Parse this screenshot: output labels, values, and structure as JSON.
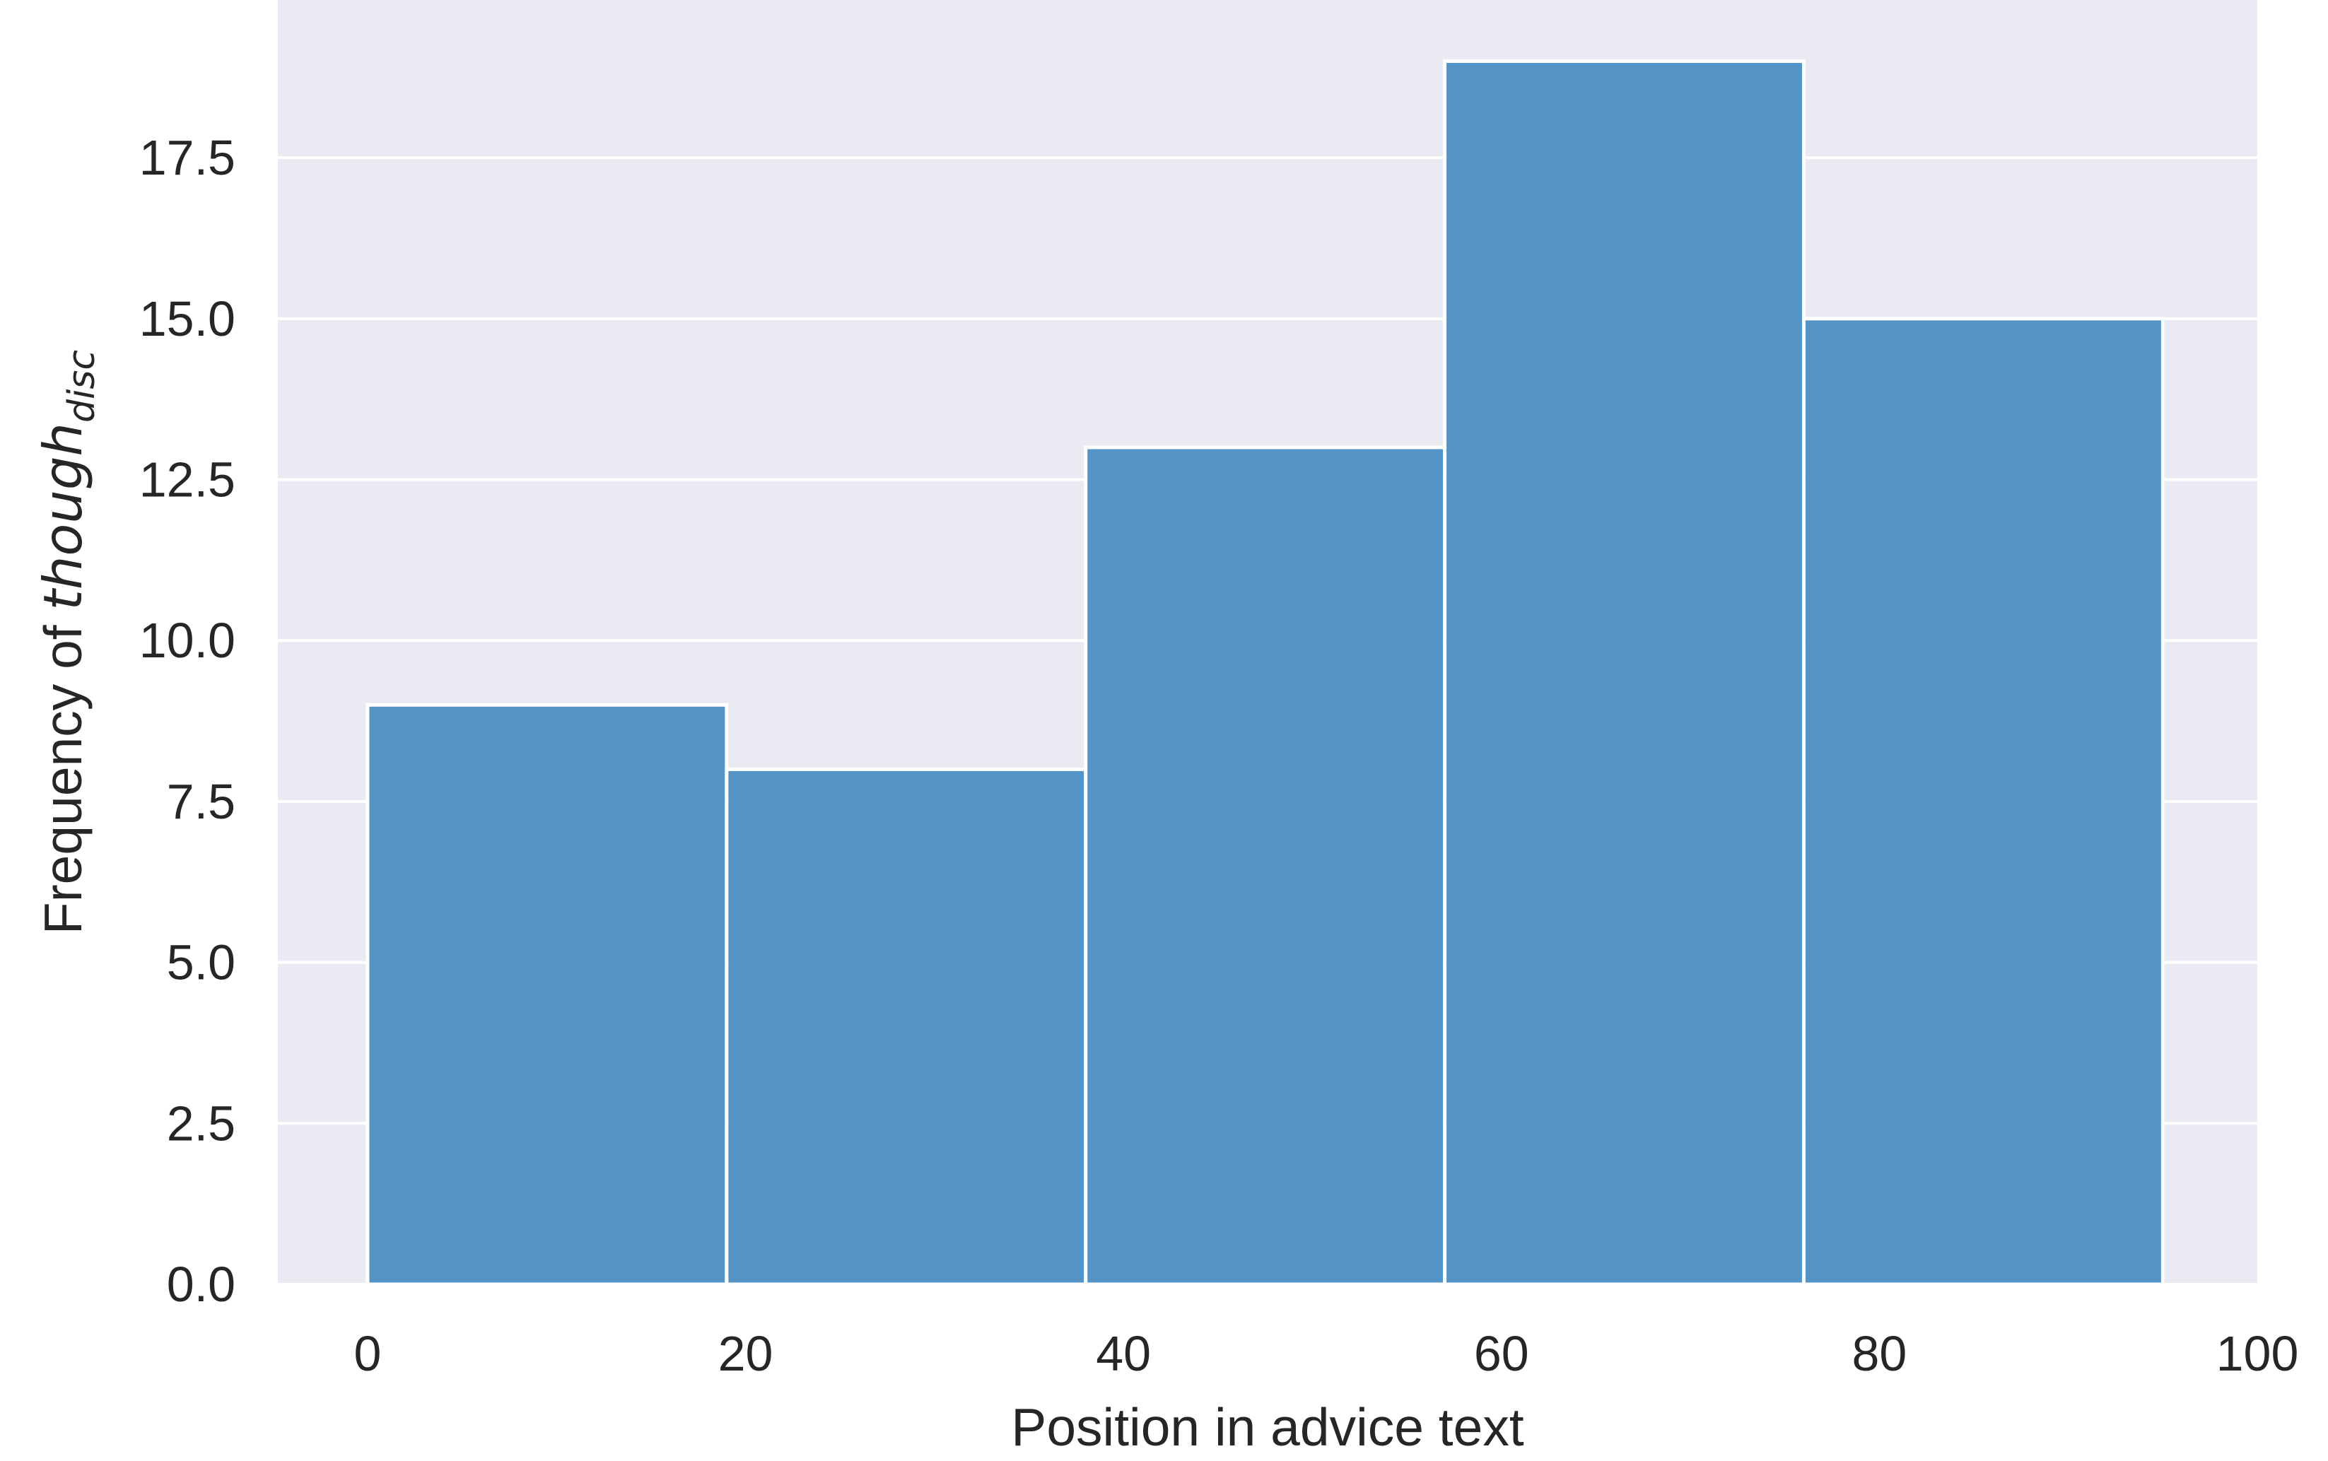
{
  "chart_data": {
    "type": "bar",
    "subtype": "histogram",
    "title": "",
    "xlabel": "Position in advice text",
    "ylabel": {
      "prefix": "Frequency of ",
      "math_main": "though",
      "math_sub": "disc"
    },
    "bin_edges": [
      0,
      19,
      38,
      57,
      76,
      95
    ],
    "values": [
      9,
      8,
      13,
      19,
      15
    ],
    "xlim": [
      -4.75,
      100
    ],
    "ylim": [
      0,
      19.95
    ],
    "x_ticks": [
      0,
      20,
      40,
      60,
      80,
      100
    ],
    "x_tick_labels": [
      "0",
      "20",
      "40",
      "60",
      "80",
      "100"
    ],
    "y_ticks": [
      0,
      2.5,
      5,
      7.5,
      10,
      12.5,
      15,
      17.5
    ],
    "y_tick_labels": [
      "0.0",
      "2.5",
      "5.0",
      "7.5",
      "10.0",
      "12.5",
      "15.0",
      "17.5"
    ],
    "grid": true,
    "legend": "none",
    "colors": {
      "plot_background": "#eaeaf2",
      "bar_fill": "#4c8ec3",
      "bar_edge": "#ffffff",
      "grid": "#ffffff",
      "text": "#262626",
      "page_background": "#ffffff"
    }
  }
}
